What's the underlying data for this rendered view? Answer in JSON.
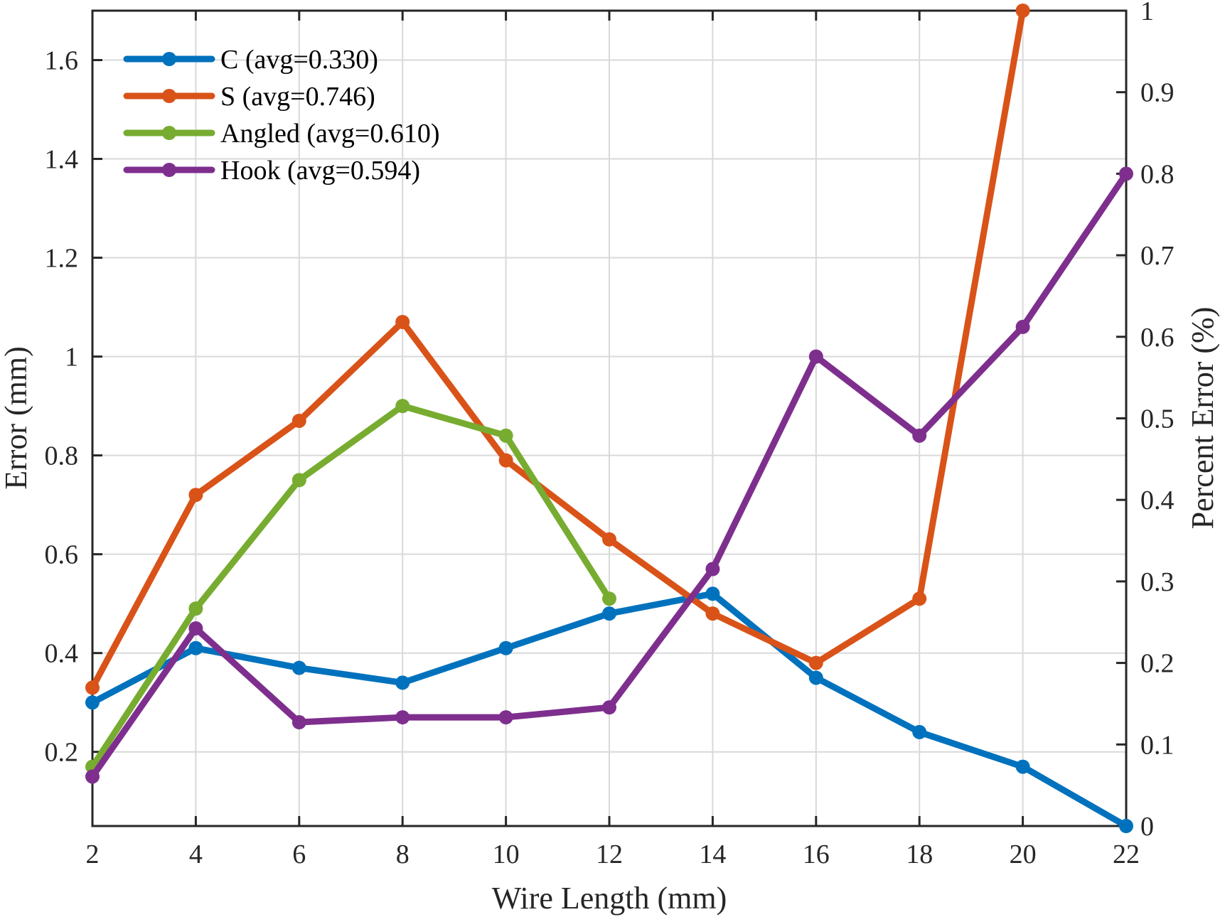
{
  "chart_data": {
    "type": "line",
    "title": "",
    "xlabel": "Wire Length (mm)",
    "ylabel": "Error (mm)",
    "y2label": "Percent Error (%)",
    "xlim": [
      2,
      22
    ],
    "ylim": [
      0.05,
      1.7
    ],
    "y2lim": [
      0,
      1
    ],
    "x_ticks": [
      "2",
      "4",
      "6",
      "8",
      "10",
      "12",
      "14",
      "16",
      "18",
      "20",
      "22"
    ],
    "y_ticks": [
      "0.2",
      "0.4",
      "0.6",
      "0.8",
      "1",
      "1.2",
      "1.4",
      "1.6"
    ],
    "y2_ticks": [
      "0",
      "0.1",
      "0.2",
      "0.3",
      "0.4",
      "0.5",
      "0.6",
      "0.7",
      "0.8",
      "0.9",
      "1"
    ],
    "grid": true,
    "legend_position": "top-left",
    "series": [
      {
        "name": "C (avg=0.330)",
        "color": "#0072BD",
        "x": [
          2,
          4,
          6,
          8,
          10,
          12,
          14,
          16,
          18,
          20,
          22
        ],
        "values": [
          0.3,
          0.41,
          0.37,
          0.34,
          0.41,
          0.48,
          0.52,
          0.35,
          0.24,
          0.17,
          0.05
        ]
      },
      {
        "name": "S (avg=0.746)",
        "color": "#D95319",
        "x": [
          2,
          4,
          6,
          8,
          10,
          12,
          14,
          16,
          18,
          20
        ],
        "values": [
          0.33,
          0.72,
          0.87,
          1.07,
          0.79,
          0.63,
          0.48,
          0.38,
          0.51,
          1.7
        ]
      },
      {
        "name": "Angled (avg=0.610)",
        "color": "#77AC30",
        "x": [
          2,
          4,
          6,
          8,
          10,
          12
        ],
        "values": [
          0.17,
          0.49,
          0.75,
          0.9,
          0.84,
          0.51
        ]
      },
      {
        "name": "Hook (avg=0.594)",
        "color": "#7E2F8E",
        "x": [
          2,
          4,
          6,
          8,
          10,
          12,
          14,
          16,
          18,
          20,
          22
        ],
        "values": [
          0.15,
          0.45,
          0.26,
          0.27,
          0.27,
          0.29,
          0.57,
          1.0,
          0.84,
          1.06,
          1.37
        ]
      }
    ]
  }
}
